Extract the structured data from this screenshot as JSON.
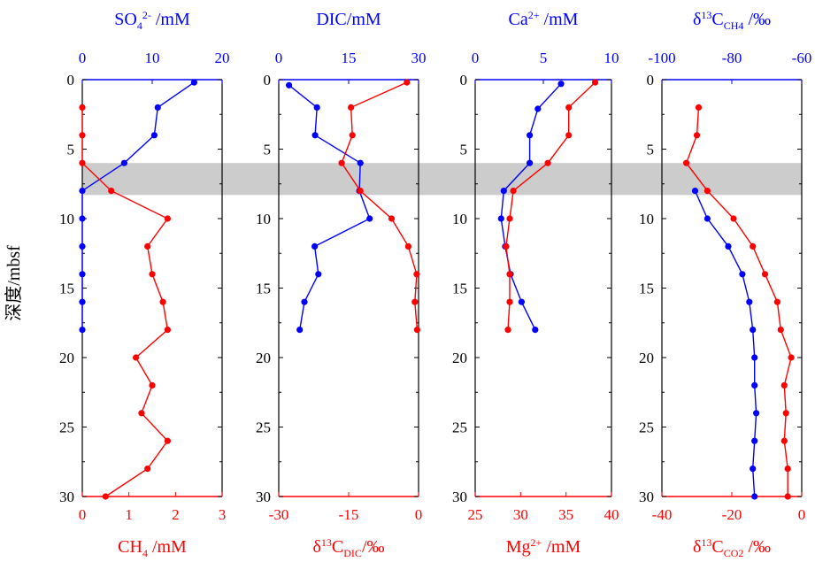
{
  "figure": {
    "ylabel": "深度/mbsf",
    "band": {
      "depth_range": [
        6,
        8.3
      ],
      "color": "#cccccc"
    },
    "colors": {
      "top_series": "#0000ff",
      "bottom_series": "#ff0000",
      "frame": "#000000"
    }
  },
  "chart_data": [
    {
      "type": "line",
      "ylim": [
        30,
        0
      ],
      "y_ticks": [
        "0",
        "5",
        "10",
        "15",
        "20",
        "25",
        "30"
      ],
      "top_axis": {
        "label": "SO4 2- /mM",
        "label_parts": [
          "SO",
          "4",
          "2-",
          " /mM"
        ],
        "lim": [
          0,
          20
        ],
        "ticks": [
          "0",
          "10",
          "20"
        ],
        "color": "#0000ff"
      },
      "bottom_axis": {
        "label": "CH4 /mM",
        "label_parts": [
          "CH",
          "4",
          " /mM"
        ],
        "lim": [
          0,
          3
        ],
        "ticks": [
          "0",
          "1",
          "2",
          "3"
        ],
        "color": "#ff0000"
      },
      "series": [
        {
          "axis": "top",
          "color": "#0000ff",
          "points": [
            [
              16,
              0.2
            ],
            [
              10.8,
              2
            ],
            [
              10.3,
              4
            ],
            [
              6,
              6
            ],
            [
              0,
              8
            ],
            [
              0,
              10
            ],
            [
              0,
              12
            ],
            [
              0,
              14
            ],
            [
              0,
              16
            ],
            [
              0,
              18
            ]
          ]
        },
        {
          "axis": "bottom",
          "color": "#ff0000",
          "points": [
            [
              0,
              2
            ],
            [
              0,
              4
            ],
            [
              0,
              6
            ],
            [
              0.62,
              8
            ],
            [
              1.83,
              10
            ],
            [
              1.4,
              12
            ],
            [
              1.5,
              14
            ],
            [
              1.73,
              16
            ],
            [
              1.83,
              18
            ],
            [
              1.15,
              20
            ],
            [
              1.5,
              22
            ],
            [
              1.27,
              24
            ],
            [
              1.83,
              26
            ],
            [
              1.4,
              28
            ],
            [
              0.5,
              30
            ]
          ]
        }
      ]
    },
    {
      "type": "line",
      "ylim": [
        30,
        0
      ],
      "y_ticks": [
        "0",
        "5",
        "10",
        "15",
        "20",
        "25",
        "30"
      ],
      "top_axis": {
        "label": "DIC/mM",
        "label_parts": [
          "DIC/mM"
        ],
        "lim": [
          0,
          30
        ],
        "ticks": [
          "0",
          "15",
          "30"
        ],
        "color": "#0000ff"
      },
      "bottom_axis": {
        "label": "δ13C DIC/‰",
        "label_parts": [
          "δ",
          "13",
          "C",
          "DIC",
          "/‰"
        ],
        "lim": [
          -30,
          0
        ],
        "ticks": [
          "-30",
          "-15",
          "0"
        ],
        "color": "#ff0000"
      },
      "series": [
        {
          "axis": "top",
          "color": "#0000ff",
          "points": [
            [
              2.2,
              0.4
            ],
            [
              8.2,
              2
            ],
            [
              7.8,
              4
            ],
            [
              17.5,
              6
            ],
            [
              17.3,
              8
            ],
            [
              19.5,
              10
            ],
            [
              7.7,
              12
            ],
            [
              8.5,
              14
            ],
            [
              5.5,
              16
            ],
            [
              4.5,
              18
            ]
          ]
        },
        {
          "axis": "bottom",
          "color": "#ff0000",
          "points": [
            [
              -2.5,
              0.2
            ],
            [
              -14.5,
              2
            ],
            [
              -14.2,
              4
            ],
            [
              -16.5,
              6
            ],
            [
              -12.5,
              8
            ],
            [
              -5.8,
              10
            ],
            [
              -2.2,
              12
            ],
            [
              -0.4,
              14
            ],
            [
              -0.8,
              16
            ],
            [
              -0.3,
              18
            ]
          ]
        }
      ]
    },
    {
      "type": "line",
      "ylim": [
        30,
        0
      ],
      "y_ticks": [
        "0",
        "5",
        "10",
        "15",
        "20",
        "25",
        "30"
      ],
      "top_axis": {
        "label": "Ca2+ /mM",
        "label_parts": [
          "Ca",
          "2+",
          " /mM"
        ],
        "lim": [
          0,
          10
        ],
        "ticks": [
          "0",
          "5",
          "10"
        ],
        "color": "#0000ff"
      },
      "bottom_axis": {
        "label": "Mg2+ /mM",
        "label_parts": [
          "Mg",
          "2+",
          " /mM"
        ],
        "lim": [
          25,
          40
        ],
        "ticks": [
          "25",
          "30",
          "35",
          "40"
        ],
        "color": "#ff0000"
      },
      "series": [
        {
          "axis": "top",
          "color": "#0000ff",
          "points": [
            [
              6.3,
              0.3
            ],
            [
              4.6,
              2.1
            ],
            [
              4,
              4
            ],
            [
              4,
              6
            ],
            [
              2.1,
              8
            ],
            [
              1.9,
              10
            ],
            [
              2.2,
              12
            ],
            [
              2.6,
              14
            ],
            [
              3.4,
              16
            ],
            [
              4.4,
              18
            ]
          ]
        },
        {
          "axis": "bottom",
          "color": "#ff0000",
          "points": [
            [
              38.2,
              0.2
            ],
            [
              35.3,
              2
            ],
            [
              35.3,
              4
            ],
            [
              33,
              6
            ],
            [
              29.2,
              8
            ],
            [
              28.8,
              10
            ],
            [
              28.4,
              12
            ],
            [
              28.8,
              14
            ],
            [
              28.8,
              16
            ],
            [
              28.6,
              18
            ]
          ]
        }
      ]
    },
    {
      "type": "line",
      "ylim": [
        30,
        0
      ],
      "y_ticks": [
        "0",
        "5",
        "10",
        "15",
        "20",
        "25",
        "30"
      ],
      "top_axis": {
        "label": "δ13C CH4 /‰",
        "label_parts": [
          "δ",
          "13",
          "C",
          "CH4",
          " /‰"
        ],
        "lim": [
          -100,
          -60
        ],
        "ticks": [
          "-100",
          "-80",
          "-60"
        ],
        "color": "#0000ff"
      },
      "bottom_axis": {
        "label": "δ13C CO2 /‰",
        "label_parts": [
          "δ",
          "13",
          "C",
          "CO2",
          " /‰"
        ],
        "lim": [
          -40,
          0
        ],
        "ticks": [
          "-40",
          "-20",
          "0"
        ],
        "color": "#ff0000"
      },
      "series": [
        {
          "axis": "top",
          "color": "#0000ff",
          "points": [
            [
              -90.5,
              8
            ],
            [
              -87,
              10
            ],
            [
              -81,
              12
            ],
            [
              -77,
              14
            ],
            [
              -75,
              16
            ],
            [
              -74,
              18
            ],
            [
              -73.5,
              20
            ],
            [
              -73.5,
              22
            ],
            [
              -73,
              24
            ],
            [
              -73.5,
              26
            ],
            [
              -74,
              28
            ],
            [
              -73.5,
              30
            ]
          ]
        },
        {
          "axis": "bottom",
          "color": "#ff0000",
          "points": [
            [
              -29.5,
              2
            ],
            [
              -30,
              4
            ],
            [
              -33,
              6
            ],
            [
              -27,
              8
            ],
            [
              -19.5,
              10
            ],
            [
              -14,
              12
            ],
            [
              -10.5,
              14
            ],
            [
              -7,
              16
            ],
            [
              -6,
              18
            ],
            [
              -3,
              20
            ],
            [
              -5,
              22
            ],
            [
              -4.5,
              24
            ],
            [
              -5,
              26
            ],
            [
              -4,
              28
            ],
            [
              -4,
              30
            ]
          ]
        }
      ]
    }
  ]
}
